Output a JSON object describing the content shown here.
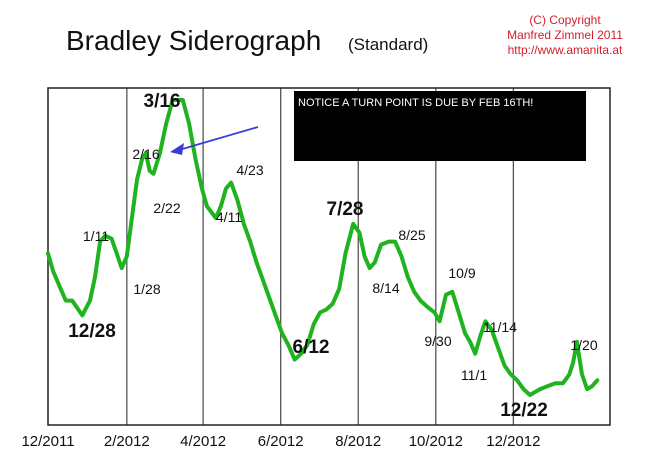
{
  "header": {
    "title": "Bradley Siderograph",
    "subtitle": "(Standard)",
    "copyright": [
      "(C) Copyright",
      "Manfred Zimmel 2011",
      "http://www.amanita.at"
    ]
  },
  "notice": {
    "text": "NOTICE A TURN POINT IS DUE BY FEB 16TH!"
  },
  "colors": {
    "line": "#1fb41f",
    "arrow": "#3b3bd6",
    "notice_bg": "#000000",
    "copyright": "#d21f2a"
  },
  "chart_data": {
    "type": "line",
    "title": "Bradley Siderograph",
    "xlabel": "",
    "ylabel": "",
    "x_ticks": [
      "12/2011",
      "2/2012",
      "4/2012",
      "6/2012",
      "8/2012",
      "10/2012",
      "12/2012"
    ],
    "x_tick_dates": [
      "2011-12-01",
      "2012-02-01",
      "2012-04-01",
      "2012-06-01",
      "2012-08-01",
      "2012-10-01",
      "2012-12-01"
    ],
    "xlim": [
      "2011-12-01",
      "2013-02-15"
    ],
    "ylim": [
      0,
      100
    ],
    "grid": "vertical lines at month ticks",
    "series": [
      {
        "name": "",
        "x": [
          "2011-12-01",
          "2011-12-05",
          "2011-12-10",
          "2011-12-15",
          "2011-12-20",
          "2011-12-28",
          "2012-01-03",
          "2012-01-07",
          "2012-01-11",
          "2012-01-15",
          "2012-01-20",
          "2012-01-24",
          "2012-01-28",
          "2012-02-01",
          "2012-02-05",
          "2012-02-09",
          "2012-02-13",
          "2012-02-16",
          "2012-02-19",
          "2012-02-22",
          "2012-02-27",
          "2012-03-03",
          "2012-03-08",
          "2012-03-12",
          "2012-03-16",
          "2012-03-21",
          "2012-03-26",
          "2012-03-31",
          "2012-04-04",
          "2012-04-11",
          "2012-04-15",
          "2012-04-19",
          "2012-04-23",
          "2012-04-28",
          "2012-05-03",
          "2012-05-08",
          "2012-05-13",
          "2012-05-18",
          "2012-05-23",
          "2012-05-28",
          "2012-06-02",
          "2012-06-07",
          "2012-06-12",
          "2012-06-17",
          "2012-06-22",
          "2012-06-27",
          "2012-07-02",
          "2012-07-07",
          "2012-07-12",
          "2012-07-17",
          "2012-07-22",
          "2012-07-28",
          "2012-08-02",
          "2012-08-06",
          "2012-08-10",
          "2012-08-14",
          "2012-08-19",
          "2012-08-25",
          "2012-08-30",
          "2012-09-04",
          "2012-09-09",
          "2012-09-14",
          "2012-09-19",
          "2012-09-24",
          "2012-09-30",
          "2012-10-04",
          "2012-10-09",
          "2012-10-14",
          "2012-10-19",
          "2012-10-24",
          "2012-10-28",
          "2012-11-01",
          "2012-11-05",
          "2012-11-09",
          "2012-11-14",
          "2012-11-19",
          "2012-11-24",
          "2012-11-29",
          "2012-12-04",
          "2012-12-09",
          "2012-12-14",
          "2012-12-22",
          "2012-12-28",
          "2013-01-03",
          "2013-01-09",
          "2013-01-14",
          "2013-01-17",
          "2013-01-20",
          "2013-01-24",
          "2013-01-28",
          "2013-02-01",
          "2013-02-05"
        ],
        "y": [
          48,
          42,
          37,
          32,
          32,
          27,
          32,
          40,
          52,
          54,
          53,
          48,
          43,
          47,
          60,
          73,
          80,
          82,
          76,
          75,
          82,
          92,
          100,
          100,
          100,
          92,
          80,
          70,
          64,
          60,
          64,
          70,
          72,
          66,
          58,
          52,
          45,
          39,
          33,
          27,
          21,
          17,
          12,
          14,
          17,
          24,
          28,
          29,
          31,
          36,
          48,
          58,
          55,
          47,
          43,
          45,
          51,
          52,
          52,
          47,
          40,
          35,
          32,
          30,
          28,
          25,
          34,
          35,
          28,
          21,
          18,
          14,
          20,
          25,
          22,
          16,
          10,
          7,
          5,
          2,
          0,
          2,
          3,
          4,
          4,
          7,
          11,
          18,
          7,
          2,
          3,
          5
        ]
      }
    ],
    "annotations": [
      {
        "text": "12/28",
        "style": "bold"
      },
      {
        "text": "1/11",
        "style": "normal"
      },
      {
        "text": "1/28",
        "style": "normal"
      },
      {
        "text": "2/16",
        "style": "normal"
      },
      {
        "text": "2/22",
        "style": "normal"
      },
      {
        "text": "3/16",
        "style": "bold"
      },
      {
        "text": "4/11",
        "style": "normal"
      },
      {
        "text": "4/23",
        "style": "normal"
      },
      {
        "text": "6/12",
        "style": "bold"
      },
      {
        "text": "7/28",
        "style": "bold"
      },
      {
        "text": "8/14",
        "style": "normal"
      },
      {
        "text": "8/25",
        "style": "normal"
      },
      {
        "text": "9/30",
        "style": "normal"
      },
      {
        "text": "10/9",
        "style": "normal"
      },
      {
        "text": "11/1",
        "style": "normal"
      },
      {
        "text": "11/14",
        "style": "normal"
      },
      {
        "text": "12/22",
        "style": "bold"
      },
      {
        "text": "1/20",
        "style": "normal"
      }
    ]
  }
}
